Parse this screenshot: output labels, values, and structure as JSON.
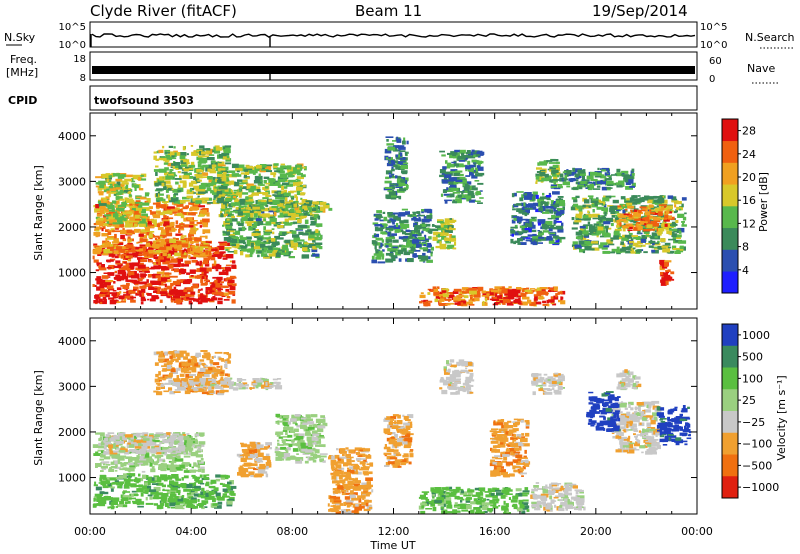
{
  "header": {
    "station": "Clyde River (fitACF)",
    "beam": "Beam 11",
    "date": "19/Sep/2014"
  },
  "strips": {
    "nsky_label": "N.Sky",
    "nsky_ticks": [
      "10^5",
      "10^0"
    ],
    "nsearch_label": "N.Search",
    "nsearch_ticks": [
      "10^5",
      "10^0"
    ],
    "freq_label": "Freq.",
    "freq_unit": "[MHz]",
    "freq_ticks": [
      "18",
      "8"
    ],
    "nave_label": "Nave",
    "nave_ticks": [
      "60",
      "0"
    ],
    "cpid_label": "CPID",
    "cpid_value": "twofsound 3503"
  },
  "chart_data": [
    {
      "type": "heatmap",
      "name": "power",
      "ylabel": "Slant Range [km]",
      "xlabel": "",
      "x_ticks": [
        "00:00",
        "04:00",
        "08:00",
        "12:00",
        "16:00",
        "20:00",
        "00:00"
      ],
      "y_ticks": [
        1000,
        2000,
        3000,
        4000
      ],
      "xlim_hours": [
        0,
        24
      ],
      "ylim_km": [
        200,
        4500
      ],
      "colorbar": {
        "label": "Power [dB]",
        "ticks": [
          4,
          8,
          12,
          16,
          20,
          24,
          28
        ],
        "range": [
          0,
          30
        ],
        "colors": [
          "#1f1fff",
          "#2b4fb0",
          "#3b8a5a",
          "#58b84c",
          "#d8c82a",
          "#f0a020",
          "#f06010",
          "#e01010"
        ]
      },
      "regions": [
        {
          "t0": 0.1,
          "t1": 5.8,
          "r0": 300,
          "r1": 1700,
          "value": 27
        },
        {
          "t0": 0.1,
          "t1": 4.8,
          "r0": 1300,
          "r1": 2600,
          "value": 22
        },
        {
          "t0": 0.2,
          "t1": 2.4,
          "r0": 2000,
          "r1": 3200,
          "value": 16
        },
        {
          "t0": 2.5,
          "t1": 5.6,
          "r0": 2500,
          "r1": 3800,
          "value": 14
        },
        {
          "t0": 5.2,
          "t1": 9.2,
          "r0": 1300,
          "r1": 2600,
          "value": 12
        },
        {
          "t0": 5.0,
          "t1": 8.6,
          "r0": 2200,
          "r1": 3400,
          "value": 14
        },
        {
          "t0": 8.3,
          "t1": 9.6,
          "r0": 2300,
          "r1": 2600,
          "value": 14
        },
        {
          "t0": 11.1,
          "t1": 13.6,
          "r0": 1200,
          "r1": 2400,
          "value": 9
        },
        {
          "t0": 11.6,
          "t1": 12.6,
          "r0": 2600,
          "r1": 4000,
          "value": 9
        },
        {
          "t0": 13.8,
          "t1": 15.6,
          "r0": 2500,
          "r1": 3700,
          "value": 10
        },
        {
          "t0": 13.5,
          "t1": 14.5,
          "r0": 1500,
          "r1": 2200,
          "value": 14
        },
        {
          "t0": 13.0,
          "t1": 18.8,
          "r0": 250,
          "r1": 700,
          "value": 23
        },
        {
          "t0": 15.8,
          "t1": 17.2,
          "r0": 300,
          "r1": 650,
          "value": 27
        },
        {
          "t0": 16.6,
          "t1": 18.8,
          "r0": 1600,
          "r1": 2800,
          "value": 8
        },
        {
          "t0": 17.6,
          "t1": 18.6,
          "r0": 2900,
          "r1": 3500,
          "value": 13
        },
        {
          "t0": 18.2,
          "t1": 21.6,
          "r0": 2800,
          "r1": 3300,
          "value": 10
        },
        {
          "t0": 19.0,
          "t1": 23.6,
          "r0": 1400,
          "r1": 2700,
          "value": 12
        },
        {
          "t0": 20.8,
          "t1": 23.2,
          "r0": 1900,
          "r1": 2500,
          "value": 22
        },
        {
          "t0": 22.5,
          "t1": 23.1,
          "r0": 700,
          "r1": 1300,
          "value": 27
        }
      ]
    },
    {
      "type": "heatmap",
      "name": "velocity",
      "ylabel": "Slant Range [km]",
      "xlabel": "Time UT",
      "x_ticks": [
        "00:00",
        "04:00",
        "08:00",
        "12:00",
        "16:00",
        "20:00",
        "00:00"
      ],
      "y_ticks": [
        1000,
        2000,
        3000,
        4000
      ],
      "xlim_hours": [
        0,
        24
      ],
      "ylim_km": [
        200,
        4500
      ],
      "colorbar": {
        "label": "Velocity [m s⁻¹]",
        "ticks": [
          "1000",
          "500",
          "100",
          "25",
          "−25",
          "−100",
          "−500",
          "−1000"
        ],
        "colors": [
          "#2040c0",
          "#3a8a5e",
          "#5abf40",
          "#9ad080",
          "#c8c8c8",
          "#f0a030",
          "#f07010",
          "#e02010"
        ]
      },
      "regions": [
        {
          "t0": 0.1,
          "t1": 5.8,
          "r0": 300,
          "r1": 1100,
          "value": 2
        },
        {
          "t0": 0.1,
          "t1": 4.6,
          "r0": 1100,
          "r1": 2000,
          "value": 3
        },
        {
          "t0": 0.4,
          "t1": 3.8,
          "r0": 1500,
          "r1": 2000,
          "value": 4
        },
        {
          "t0": 2.5,
          "t1": 5.6,
          "r0": 2800,
          "r1": 3800,
          "value": 5
        },
        {
          "t0": 3.2,
          "t1": 7.6,
          "r0": 2900,
          "r1": 3200,
          "value": 4
        },
        {
          "t0": 5.8,
          "t1": 7.2,
          "r0": 1000,
          "r1": 1800,
          "value": 5
        },
        {
          "t0": 7.3,
          "t1": 9.4,
          "r0": 1300,
          "r1": 2400,
          "value": 3
        },
        {
          "t0": 9.4,
          "t1": 11.2,
          "r0": 200,
          "r1": 1700,
          "value": 5
        },
        {
          "t0": 11.6,
          "t1": 12.8,
          "r0": 1200,
          "r1": 2400,
          "value": 5
        },
        {
          "t0": 13.8,
          "t1": 15.2,
          "r0": 2800,
          "r1": 3600,
          "value": 4
        },
        {
          "t0": 13.0,
          "t1": 17.4,
          "r0": 200,
          "r1": 800,
          "value": 2
        },
        {
          "t0": 15.8,
          "t1": 17.4,
          "r0": 1000,
          "r1": 2300,
          "value": 5
        },
        {
          "t0": 17.4,
          "t1": 19.6,
          "r0": 250,
          "r1": 900,
          "value": 4
        },
        {
          "t0": 17.4,
          "t1": 18.8,
          "r0": 2800,
          "r1": 3300,
          "value": 4
        },
        {
          "t0": 20.8,
          "t1": 21.8,
          "r0": 2900,
          "r1": 3400,
          "value": 4
        },
        {
          "t0": 20.6,
          "t1": 22.6,
          "r0": 1500,
          "r1": 2700,
          "value": 4
        },
        {
          "t0": 22.4,
          "t1": 23.8,
          "r0": 1700,
          "r1": 2600,
          "value": 0
        },
        {
          "t0": 19.6,
          "t1": 21.0,
          "r0": 2000,
          "r1": 2900,
          "value": 0
        }
      ]
    }
  ]
}
